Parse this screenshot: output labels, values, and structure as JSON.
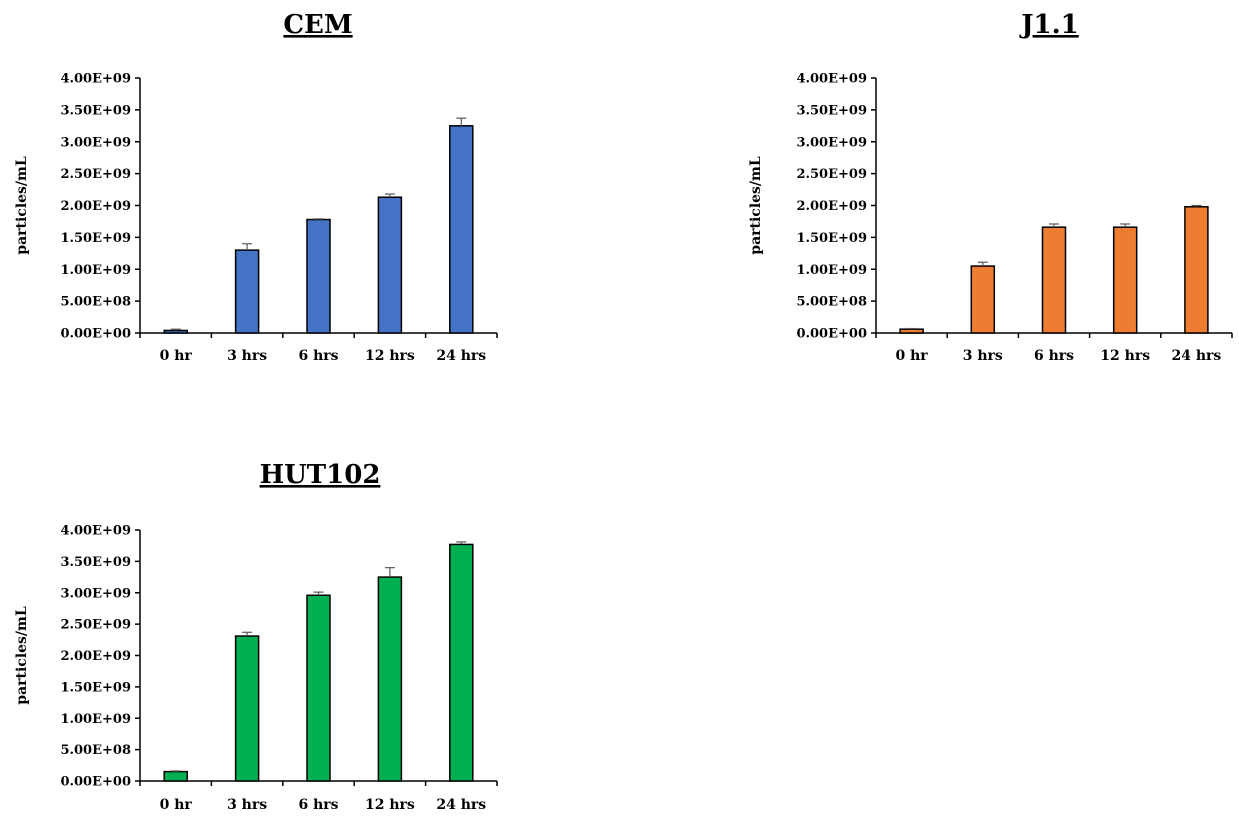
{
  "chart_data": [
    {
      "type": "bar",
      "title": "CEM",
      "ylabel": "particles/mL",
      "xlabel": "",
      "categories": [
        "0 hr",
        "3 hrs",
        "6 hrs",
        "12 hrs",
        "24 hrs"
      ],
      "values": [
        40000000,
        1300000000,
        1780000000,
        2130000000,
        3250000000
      ],
      "errors": [
        20000000,
        100000000,
        10000000,
        50000000,
        120000000
      ],
      "ylim": [
        0,
        4000000000
      ],
      "yticks": [
        "0.00E+00",
        "5.00E+08",
        "1.00E+09",
        "1.50E+09",
        "2.00E+09",
        "2.50E+09",
        "3.00E+09",
        "3.50E+09",
        "4.00E+09"
      ],
      "color": "#4472C4",
      "grid": false,
      "legend": "none"
    },
    {
      "type": "bar",
      "title": "J1.1",
      "ylabel": "particles/mL",
      "xlabel": "",
      "categories": [
        "0 hr",
        "3 hrs",
        "6 hrs",
        "12 hrs",
        "24 hrs"
      ],
      "values": [
        60000000,
        1050000000,
        1660000000,
        1660000000,
        1980000000
      ],
      "errors": [
        10000000,
        60000000,
        50000000,
        50000000,
        20000000
      ],
      "ylim": [
        0,
        4000000000
      ],
      "yticks": [
        "0.00E+00",
        "5.00E+08",
        "1.00E+09",
        "1.50E+09",
        "2.00E+09",
        "2.50E+09",
        "3.00E+09",
        "3.50E+09",
        "4.00E+09"
      ],
      "color": "#ED7D31",
      "grid": false,
      "legend": "none"
    },
    {
      "type": "bar",
      "title": "HUT102",
      "ylabel": "particles/mL",
      "xlabel": "",
      "categories": [
        "0 hr",
        "3 hrs",
        "6 hrs",
        "12 hrs",
        "24 hrs"
      ],
      "values": [
        150000000,
        2310000000,
        2960000000,
        3250000000,
        3770000000
      ],
      "errors": [
        10000000,
        60000000,
        50000000,
        150000000,
        40000000
      ],
      "ylim": [
        0,
        4000000000
      ],
      "yticks": [
        "0.00E+00",
        "5.00E+08",
        "1.00E+09",
        "1.50E+09",
        "2.00E+09",
        "2.50E+09",
        "3.00E+09",
        "3.50E+09",
        "4.00E+09"
      ],
      "color": "#00B050",
      "grid": false,
      "legend": "none"
    }
  ]
}
